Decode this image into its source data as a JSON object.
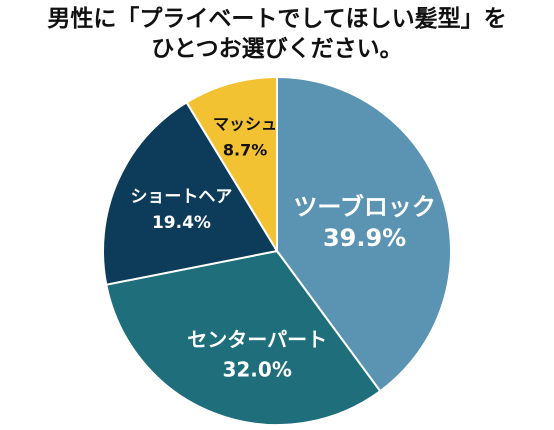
{
  "chart_data": {
    "type": "pie",
    "title_lines": [
      "男性に「プライベートでしてほしい髪型」を",
      "ひとつお選びください。"
    ],
    "slices": [
      {
        "label": "ツーブロック",
        "value": 39.9,
        "value_label": "39.9%",
        "color": "#5b93b3",
        "text_color": "#ffffff"
      },
      {
        "label": "センターパート",
        "value": 32.0,
        "value_label": "32.0%",
        "color": "#1e6e7c",
        "text_color": "#ffffff"
      },
      {
        "label": "ショートヘア",
        "value": 19.4,
        "value_label": "19.4%",
        "color": "#0d3b5a",
        "text_color": "#ffffff"
      },
      {
        "label": "マッシュ",
        "value": 8.7,
        "value_label": "8.7%",
        "color": "#f3c233",
        "text_color": "#111111"
      }
    ],
    "start_angle": "12 o'clock",
    "direction": "clockwise",
    "legend": "none",
    "labels": "inside slices"
  }
}
